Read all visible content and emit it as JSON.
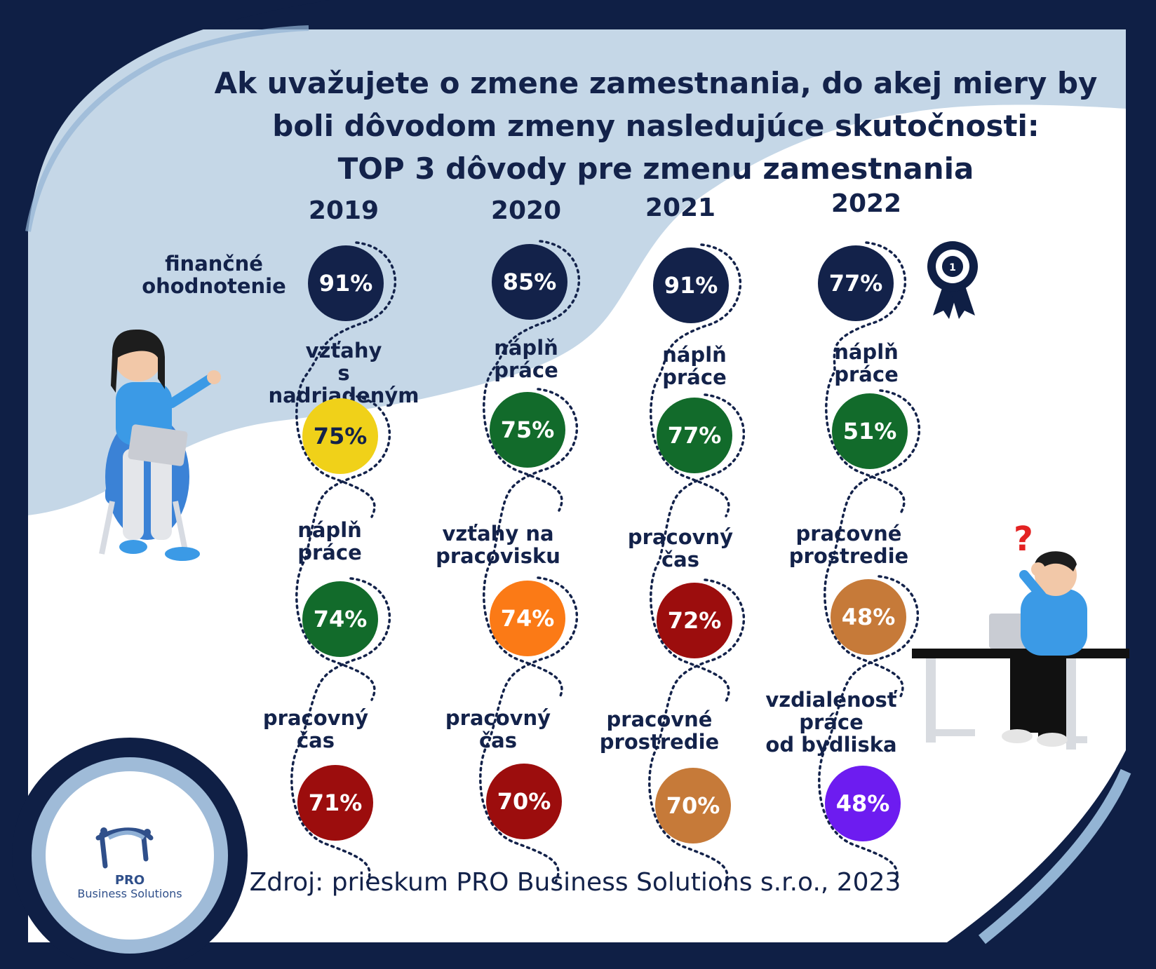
{
  "title": {
    "line1": "Ak uvažujete o zmene zamestnania, do akej miery by",
    "line2": "boli dôvodom zmeny nasledujúce skutočnosti:",
    "line3": "TOP 3 dôvody pre zmenu zamestnania"
  },
  "chart_data": {
    "type": "table",
    "years": [
      "2019",
      "2020",
      "2021",
      "2022"
    ],
    "columns": [
      {
        "year": "2019",
        "items": [
          {
            "label": "finančné ohodnotenie",
            "value": "91%",
            "color": "#13224a"
          },
          {
            "label": "vzťahy s nadriadeným",
            "value": "75%",
            "color": "#f0d119"
          },
          {
            "label": "náplň práce",
            "value": "74%",
            "color": "#126b2b"
          },
          {
            "label": "pracovný čas",
            "value": "71%",
            "color": "#9c0d0d"
          }
        ]
      },
      {
        "year": "2020",
        "items": [
          {
            "label": "",
            "value": "85%",
            "color": "#13224a"
          },
          {
            "label": "náplň práce",
            "value": "75%",
            "color": "#126b2b"
          },
          {
            "label": "vzťahy na pracovisku",
            "value": "74%",
            "color": "#fb7a16"
          },
          {
            "label": "pracovný čas",
            "value": "70%",
            "color": "#9c0d0d"
          }
        ]
      },
      {
        "year": "2021",
        "items": [
          {
            "label": "",
            "value": "91%",
            "color": "#13224a"
          },
          {
            "label": "náplň práce",
            "value": "77%",
            "color": "#126b2b"
          },
          {
            "label": "pracovný čas",
            "value": "72%",
            "color": "#9c0d0d"
          },
          {
            "label": "pracovné prostredie",
            "value": "70%",
            "color": "#c67a39"
          }
        ]
      },
      {
        "year": "2022",
        "items": [
          {
            "label": "",
            "value": "77%",
            "color": "#13224a"
          },
          {
            "label": "náplň práce",
            "value": "51%",
            "color": "#126b2b"
          },
          {
            "label": "pracovné prostredie",
            "value": "48%",
            "color": "#c67a39"
          },
          {
            "label": "vzdialenosť práce od bydliska",
            "value": "48%",
            "color": "#6d1cf0"
          }
        ]
      }
    ]
  },
  "labels": {
    "c2019_0_a": "finančné",
    "c2019_0_b": "ohodnotenie",
    "c2019_1_a": "vzťahy",
    "c2019_1_b": "s nadriadeným",
    "c2019_2_a": "náplň",
    "c2019_2_b": "práce",
    "c2019_3_a": "pracovný",
    "c2019_3_b": "čas",
    "c2020_1_a": "náplň",
    "c2020_1_b": "práce",
    "c2020_2_a": "vzťahy na",
    "c2020_2_b": "pracovisku",
    "c2020_3_a": "pracovný",
    "c2020_3_b": "čas",
    "c2021_1_a": "náplň",
    "c2021_1_b": "práce",
    "c2021_2_a": "pracovný",
    "c2021_2_b": "čas",
    "c2021_3_a": "pracovné",
    "c2021_3_b": "prostredie",
    "c2022_1_a": "náplň",
    "c2022_1_b": "práce",
    "c2022_2_a": "pracovné",
    "c2022_2_b": "prostredie",
    "c2022_3_a": "vzdialenosť",
    "c2022_3_b": "práce",
    "c2022_3_c": "od bydliska"
  },
  "source": "Zdroj: prieskum PRO Business Solutions s.r.o., 2023",
  "logo": {
    "line1": "PRO",
    "line2": "Business Solutions"
  },
  "colors": {
    "frame": "#0f1f45",
    "light_blue": "#c5d7e7",
    "accent_blue": "#93b4d4",
    "white": "#ffffff",
    "text": "#13224a"
  },
  "icons": {
    "badge": "award-ribbon-icon",
    "question": "question-mark-icon"
  }
}
